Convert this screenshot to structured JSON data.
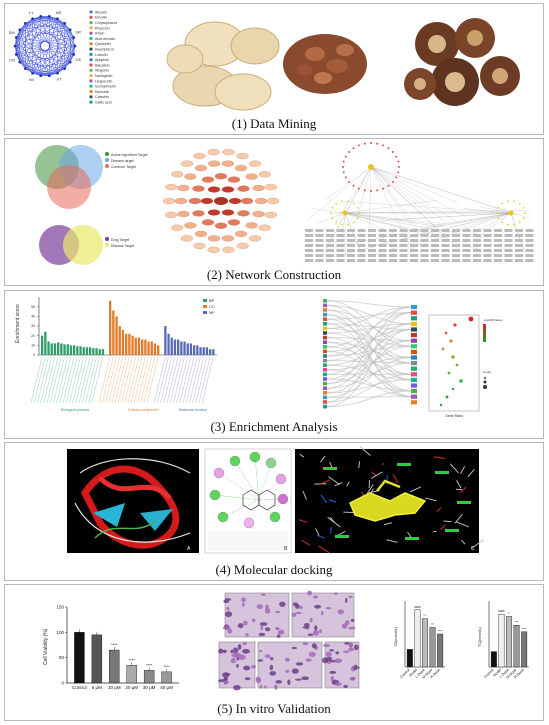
{
  "panels": [
    {
      "id": "data-mining",
      "caption": "(1) Data Mining"
    },
    {
      "id": "network-construction",
      "caption": "(2) Network Construction"
    },
    {
      "id": "enrichment-analysis",
      "caption": "(3) Enrichment Analysis"
    },
    {
      "id": "molecular-docking",
      "caption": "(4) Molecular docking"
    },
    {
      "id": "in-vitro-validation",
      "caption": "(5) In vitro Validation"
    }
  ],
  "data_mining": {
    "network_nodes": [
      "SR",
      "CE",
      "XT",
      "IM",
      "CN",
      "SM",
      "TT",
      "NR"
    ],
    "legend_items": [
      "Alizarin",
      "Emodin",
      "Chrysophanol",
      "Physcion",
      "Rhein",
      "Aloe-emodin",
      "Quercetin",
      "Kaempferol",
      "Luteolin",
      "Apigenin",
      "Baicalein",
      "Wogonin",
      "Naringenin",
      "Hesperetin",
      "Isorhamnetin",
      "Myricetin",
      "Catechin",
      "Gallic acid"
    ]
  },
  "network": {
    "venn1_legend": [
      "Active ingredient Target",
      "Disease target",
      "Common Target"
    ],
    "venn2_legend": [
      "Drug Target",
      "Disease Target"
    ]
  },
  "enrichment": {
    "go_ylabel": "Enrichment score",
    "go_legend": [
      "BP",
      "CC",
      "MF"
    ],
    "go_colors": [
      "#2e9e6a",
      "#e07b2a",
      "#5a6bb5"
    ],
    "go_group_labels": [
      "Biological process",
      "Cellular component",
      "Molecular function"
    ],
    "bubble_legend_title": "-log10(Pvalue)",
    "bubble_size_title": "Count",
    "bubble_xlabel": "Gene Ratio"
  },
  "docking": {
    "panel_labels": [
      "A",
      "B",
      "C"
    ]
  },
  "validation": {
    "chart_data": [
      {
        "type": "bar",
        "ylabel": "Cell Viability (%)",
        "categories": [
          "Control",
          "5 μM",
          "10 μM",
          "20 μM",
          "30 μM",
          "40 μM"
        ],
        "values": [
          100,
          95,
          65,
          35,
          25,
          22
        ],
        "significance": [
          "",
          "",
          "****",
          "****",
          "****",
          "****"
        ],
        "ylim": [
          0,
          150
        ],
        "yticks": [
          0,
          50,
          100,
          150
        ]
      },
      {
        "type": "bar",
        "ylabel": "TG(mmol/L)",
        "categories": [
          "Control",
          "Model",
          "L-Dose",
          "M-Dose",
          "H-Dose"
        ],
        "values": [
          0.4,
          1.3,
          1.1,
          0.9,
          0.75
        ],
        "significance": [
          "",
          "####",
          "***",
          "***",
          "****"
        ],
        "ylim": [
          0,
          1.5
        ]
      },
      {
        "type": "bar",
        "ylabel": "TC(mmol/L)",
        "categories": [
          "Control",
          "Model",
          "L-Dose",
          "M-Dose",
          "H-Dose"
        ],
        "values": [
          0.35,
          1.2,
          1.15,
          0.95,
          0.8
        ],
        "significance": [
          "",
          "####",
          "**",
          "***",
          "****"
        ],
        "ylim": [
          0,
          1.5
        ]
      }
    ]
  }
}
